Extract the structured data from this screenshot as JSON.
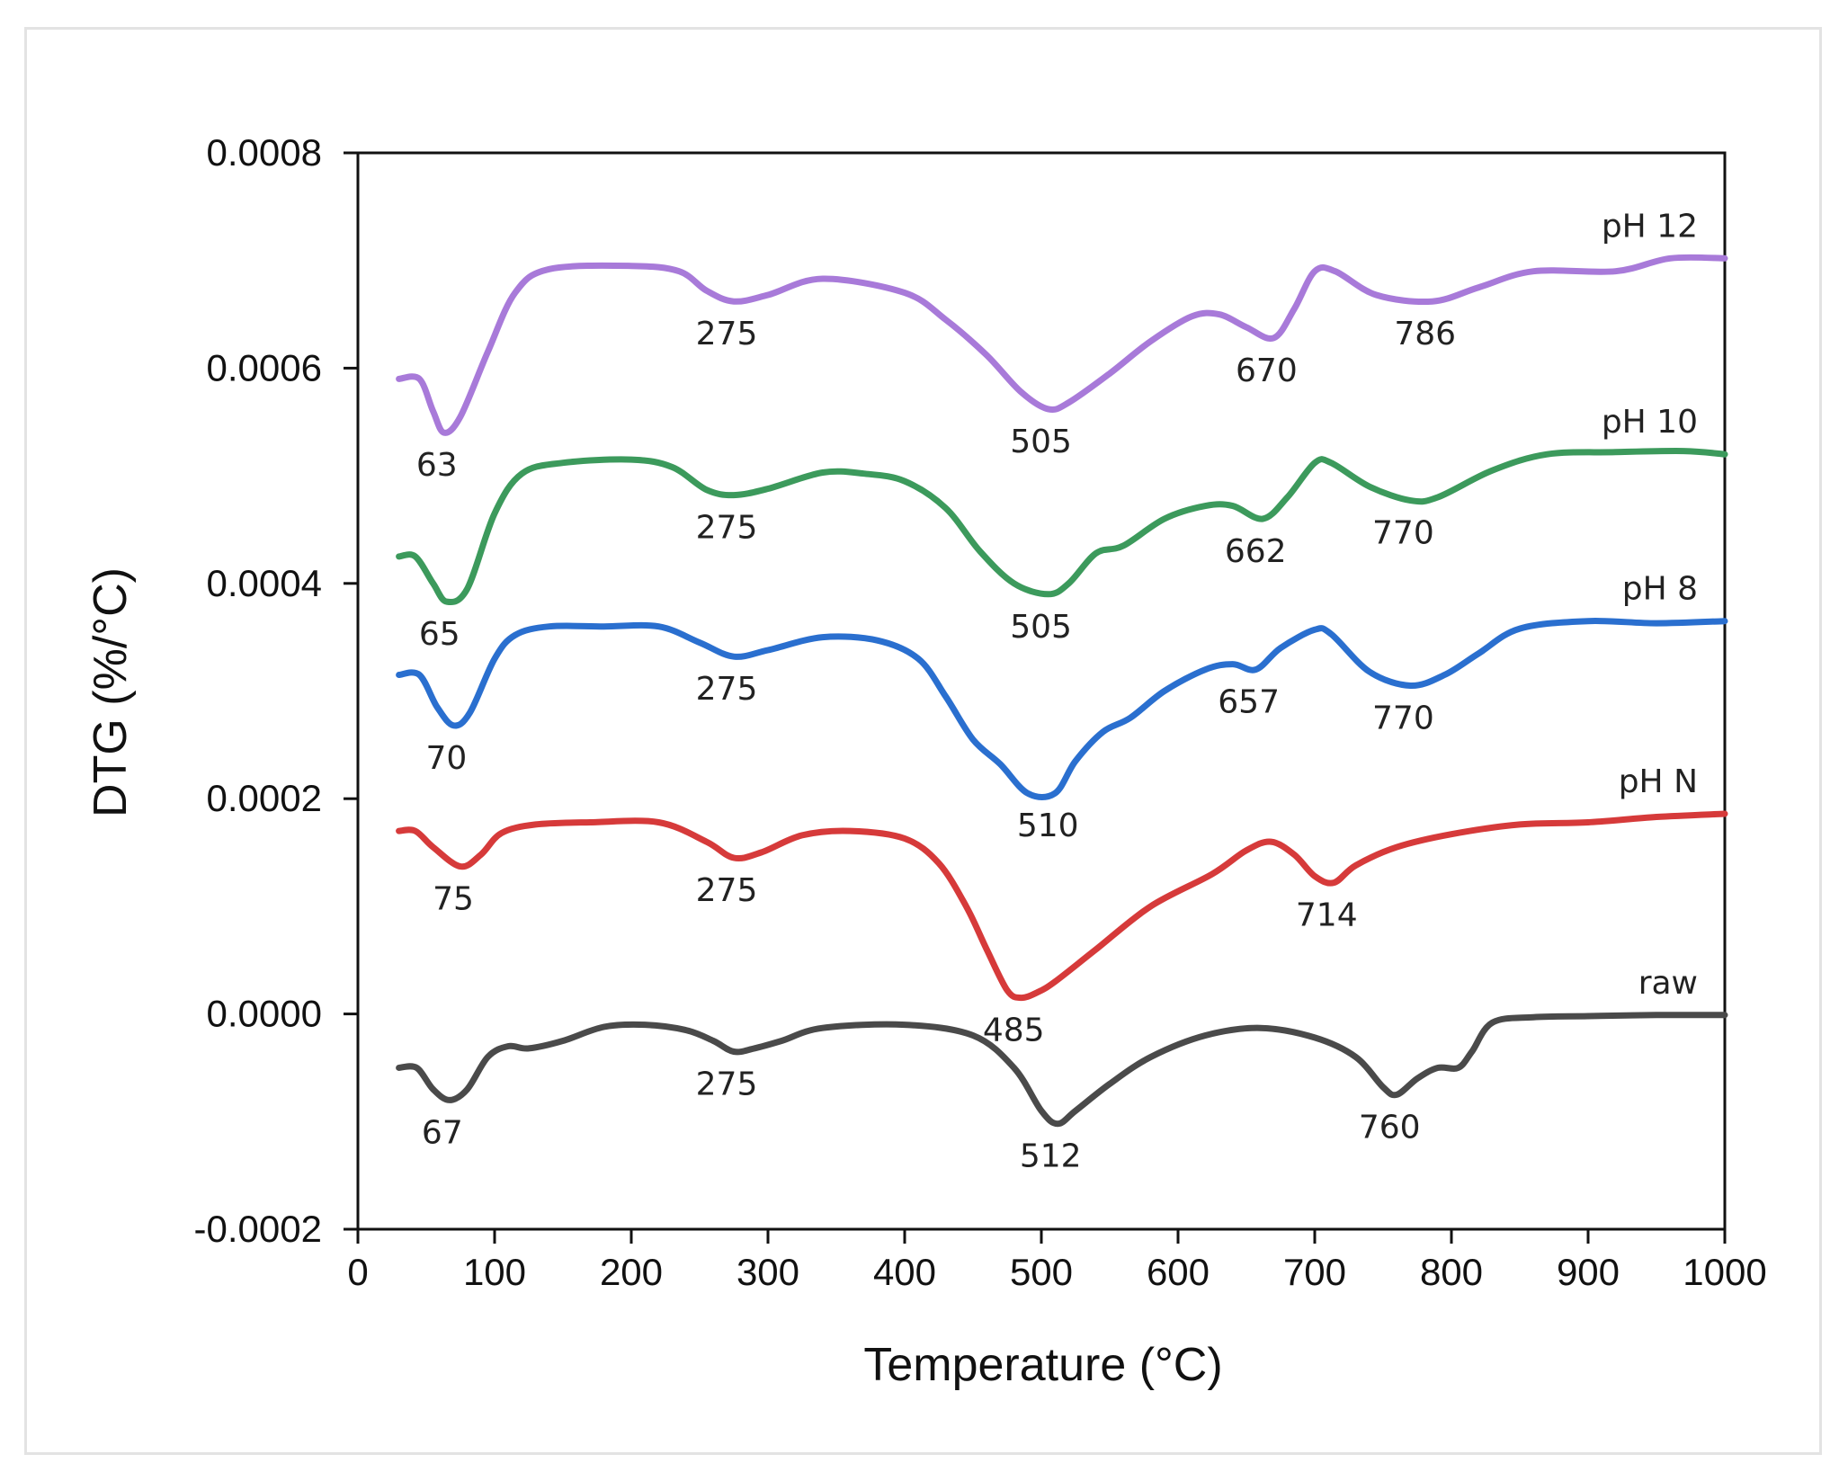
{
  "chart_data": {
    "type": "line",
    "title": "",
    "xlabel": "Temperature (°C)",
    "ylabel": "DTG (%/°C)",
    "xlim": [
      0,
      1000
    ],
    "ylim": [
      -0.0002,
      0.0008
    ],
    "x_ticks": [
      "0",
      "100",
      "200",
      "300",
      "400",
      "500",
      "600",
      "700",
      "800",
      "900",
      "1000"
    ],
    "y_ticks": [
      "-0.0002",
      "0.0000",
      "0.0002",
      "0.0004",
      "0.0006",
      "0.0008"
    ],
    "grid": false,
    "legend": "inline labels at right end of each curve",
    "series": [
      {
        "name": "raw",
        "color": "#4a4a4a",
        "points": [
          [
            30,
            -5e-05
          ],
          [
            43,
            -5e-05
          ],
          [
            55,
            -7e-05
          ],
          [
            67,
            -8e-05
          ],
          [
            80,
            -7e-05
          ],
          [
            95,
            -4e-05
          ],
          [
            110,
            -3e-05
          ],
          [
            125,
            -3.2e-05
          ],
          [
            150,
            -2.5e-05
          ],
          [
            180,
            -1.2e-05
          ],
          [
            210,
            -1e-05
          ],
          [
            240,
            -1.5e-05
          ],
          [
            260,
            -2.5e-05
          ],
          [
            275,
            -3.5e-05
          ],
          [
            290,
            -3.2e-05
          ],
          [
            310,
            -2.5e-05
          ],
          [
            340,
            -1.3e-05
          ],
          [
            400,
            -1e-05
          ],
          [
            450,
            -2e-05
          ],
          [
            480,
            -5e-05
          ],
          [
            500,
            -9e-05
          ],
          [
            512,
            -0.000102
          ],
          [
            525,
            -9e-05
          ],
          [
            550,
            -6.5e-05
          ],
          [
            580,
            -4e-05
          ],
          [
            620,
            -2e-05
          ],
          [
            660,
            -1.3e-05
          ],
          [
            700,
            -2.2e-05
          ],
          [
            730,
            -4e-05
          ],
          [
            750,
            -6.8e-05
          ],
          [
            760,
            -7.5e-05
          ],
          [
            775,
            -6e-05
          ],
          [
            790,
            -5e-05
          ],
          [
            805,
            -5e-05
          ],
          [
            815,
            -3.5e-05
          ],
          [
            830,
            -8e-06
          ],
          [
            860,
            -3e-06
          ],
          [
            900,
            -2e-06
          ],
          [
            950,
            -1e-06
          ],
          [
            1000,
            -1e-06
          ]
        ],
        "annotations": [
          [
            67,
            "67"
          ],
          [
            275,
            "275"
          ],
          [
            512,
            "512"
          ],
          [
            760,
            "760"
          ]
        ]
      },
      {
        "name": "pH N",
        "color": "#d63a3a",
        "points": [
          [
            30,
            0.00017
          ],
          [
            42,
            0.00017
          ],
          [
            55,
            0.000155
          ],
          [
            75,
            0.000137
          ],
          [
            90,
            0.000148
          ],
          [
            105,
            0.000168
          ],
          [
            130,
            0.000176
          ],
          [
            170,
            0.000178
          ],
          [
            220,
            0.000178
          ],
          [
            255,
            0.00016
          ],
          [
            275,
            0.000145
          ],
          [
            295,
            0.00015
          ],
          [
            325,
            0.000166
          ],
          [
            360,
            0.00017
          ],
          [
            400,
            0.000163
          ],
          [
            425,
            0.00014
          ],
          [
            445,
            0.0001
          ],
          [
            460,
            6e-05
          ],
          [
            475,
            2.2e-05
          ],
          [
            485,
            1.5e-05
          ],
          [
            497,
            2e-05
          ],
          [
            510,
            3e-05
          ],
          [
            540,
            6e-05
          ],
          [
            580,
            0.0001
          ],
          [
            625,
            0.00013
          ],
          [
            650,
            0.000152
          ],
          [
            668,
            0.00016
          ],
          [
            685,
            0.000148
          ],
          [
            700,
            0.000128
          ],
          [
            714,
            0.000122
          ],
          [
            730,
            0.000138
          ],
          [
            760,
            0.000155
          ],
          [
            800,
            0.000167
          ],
          [
            850,
            0.000176
          ],
          [
            900,
            0.000178
          ],
          [
            950,
            0.000183
          ],
          [
            1000,
            0.000186
          ]
        ],
        "annotations": [
          [
            75,
            "75"
          ],
          [
            275,
            "275"
          ],
          [
            485,
            "485"
          ],
          [
            714,
            "714"
          ]
        ]
      },
      {
        "name": "pH 8",
        "color": "#2a6fcf",
        "points": [
          [
            30,
            0.000315
          ],
          [
            45,
            0.000315
          ],
          [
            58,
            0.000285
          ],
          [
            70,
            0.000268
          ],
          [
            82,
            0.00028
          ],
          [
            100,
            0.00033
          ],
          [
            115,
            0.000352
          ],
          [
            140,
            0.00036
          ],
          [
            180,
            0.00036
          ],
          [
            220,
            0.00036
          ],
          [
            250,
            0.000345
          ],
          [
            275,
            0.000332
          ],
          [
            300,
            0.000338
          ],
          [
            340,
            0.00035
          ],
          [
            380,
            0.000347
          ],
          [
            410,
            0.00033
          ],
          [
            430,
            0.000295
          ],
          [
            450,
            0.000255
          ],
          [
            470,
            0.000232
          ],
          [
            490,
            0.000205
          ],
          [
            510,
            0.000205
          ],
          [
            525,
            0.000235
          ],
          [
            545,
            0.000262
          ],
          [
            565,
            0.000275
          ],
          [
            590,
            0.0003
          ],
          [
            620,
            0.00032
          ],
          [
            640,
            0.000325
          ],
          [
            657,
            0.00032
          ],
          [
            675,
            0.00034
          ],
          [
            700,
            0.000357
          ],
          [
            712,
            0.000353
          ],
          [
            740,
            0.000318
          ],
          [
            770,
            0.000305
          ],
          [
            795,
            0.000315
          ],
          [
            820,
            0.000335
          ],
          [
            850,
            0.000358
          ],
          [
            900,
            0.000365
          ],
          [
            950,
            0.000363
          ],
          [
            1000,
            0.000365
          ]
        ],
        "annotations": [
          [
            70,
            "70"
          ],
          [
            275,
            "275"
          ],
          [
            510,
            "510"
          ],
          [
            657,
            "657"
          ],
          [
            770,
            "770"
          ]
        ]
      },
      {
        "name": "pH 10",
        "color": "#3c9a5c",
        "points": [
          [
            30,
            0.000425
          ],
          [
            42,
            0.000425
          ],
          [
            55,
            0.0004
          ],
          [
            65,
            0.000383
          ],
          [
            80,
            0.000395
          ],
          [
            100,
            0.000465
          ],
          [
            120,
            0.000502
          ],
          [
            150,
            0.000512
          ],
          [
            200,
            0.000515
          ],
          [
            230,
            0.000508
          ],
          [
            255,
            0.000487
          ],
          [
            275,
            0.000482
          ],
          [
            300,
            0.000488
          ],
          [
            340,
            0.000503
          ],
          [
            370,
            0.000502
          ],
          [
            400,
            0.000495
          ],
          [
            430,
            0.00047
          ],
          [
            455,
            0.00043
          ],
          [
            480,
            0.0004
          ],
          [
            505,
            0.00039
          ],
          [
            520,
            0.0004
          ],
          [
            540,
            0.000428
          ],
          [
            560,
            0.000435
          ],
          [
            590,
            0.00046
          ],
          [
            620,
            0.000472
          ],
          [
            640,
            0.000472
          ],
          [
            662,
            0.00046
          ],
          [
            680,
            0.00048
          ],
          [
            700,
            0.000512
          ],
          [
            712,
            0.000512
          ],
          [
            740,
            0.00049
          ],
          [
            770,
            0.000477
          ],
          [
            790,
            0.00048
          ],
          [
            830,
            0.000505
          ],
          [
            870,
            0.00052
          ],
          [
            920,
            0.000522
          ],
          [
            970,
            0.000523
          ],
          [
            1000,
            0.00052
          ]
        ],
        "annotations": [
          [
            65,
            "65"
          ],
          [
            275,
            "275"
          ],
          [
            505,
            "505"
          ],
          [
            662,
            "662"
          ],
          [
            770,
            "770"
          ]
        ]
      },
      {
        "name": "pH 12",
        "color": "#a87ad9",
        "points": [
          [
            30,
            0.00059
          ],
          [
            45,
            0.00059
          ],
          [
            55,
            0.00056
          ],
          [
            63,
            0.00054
          ],
          [
            75,
            0.000555
          ],
          [
            95,
            0.000615
          ],
          [
            115,
            0.00067
          ],
          [
            140,
            0.000692
          ],
          [
            200,
            0.000695
          ],
          [
            235,
            0.00069
          ],
          [
            255,
            0.000672
          ],
          [
            275,
            0.000662
          ],
          [
            300,
            0.000668
          ],
          [
            340,
            0.000683
          ],
          [
            400,
            0.00067
          ],
          [
            430,
            0.000645
          ],
          [
            460,
            0.000612
          ],
          [
            485,
            0.000578
          ],
          [
            505,
            0.000562
          ],
          [
            520,
            0.000568
          ],
          [
            550,
            0.000595
          ],
          [
            580,
            0.000625
          ],
          [
            610,
            0.000648
          ],
          [
            630,
            0.00065
          ],
          [
            650,
            0.000638
          ],
          [
            670,
            0.000628
          ],
          [
            685,
            0.000655
          ],
          [
            700,
            0.00069
          ],
          [
            715,
            0.00069
          ],
          [
            745,
            0.000668
          ],
          [
            786,
            0.000662
          ],
          [
            820,
            0.000675
          ],
          [
            860,
            0.00069
          ],
          [
            920,
            0.00069
          ],
          [
            960,
            0.000702
          ],
          [
            1000,
            0.000702
          ]
        ],
        "annotations": [
          [
            275,
            "275"
          ],
          [
            505,
            "505"
          ],
          [
            670,
            "670"
          ],
          [
            786,
            "786"
          ]
        ]
      }
    ],
    "extra_annotations": [
      {
        "series": "pH 12",
        "x": 63,
        "label": "63"
      }
    ]
  }
}
